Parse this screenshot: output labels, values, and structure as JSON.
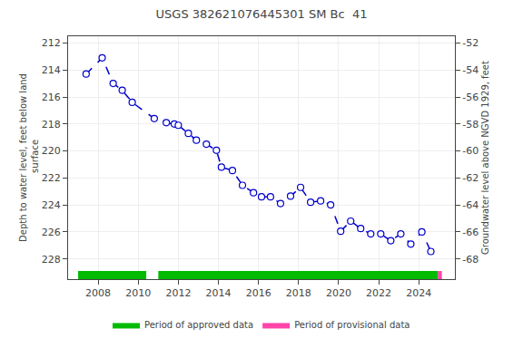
{
  "chart_data": {
    "type": "line",
    "title": "USGS 382621076445301 SM Bc  41",
    "ylabel": "Depth to water level, feet below land\n surface",
    "y2label": "Groundwater level above NGVD 1929, feet",
    "x": [
      2007.4,
      2008.2,
      2008.75,
      2009.2,
      2009.7,
      2010.8,
      2011.4,
      2011.8,
      2012.0,
      2012.5,
      2012.9,
      2013.4,
      2013.9,
      2014.15,
      2014.7,
      2015.2,
      2015.75,
      2016.15,
      2016.6,
      2017.1,
      2017.6,
      2018.1,
      2018.6,
      2019.1,
      2019.6,
      2020.1,
      2020.6,
      2021.1,
      2021.6,
      2022.1,
      2022.6,
      2023.1,
      2023.6,
      2024.15,
      2024.6
    ],
    "values": [
      214.3,
      213.1,
      215.0,
      215.5,
      216.4,
      217.6,
      217.9,
      218.0,
      218.1,
      218.7,
      219.2,
      219.5,
      219.95,
      221.2,
      221.45,
      222.55,
      223.1,
      223.4,
      223.4,
      223.9,
      223.35,
      222.7,
      223.8,
      223.7,
      224.0,
      225.95,
      225.2,
      225.75,
      226.15,
      226.15,
      226.65,
      226.15,
      226.9,
      226.0,
      227.45
    ],
    "color": "#0000cc",
    "line_style": "dashed",
    "marker": "circle",
    "xlim": [
      2006.5,
      2025.8
    ],
    "xticks": [
      2008,
      2010,
      2012,
      2014,
      2016,
      2018,
      2020,
      2022,
      2024
    ],
    "ylim": [
      229.5,
      211.5
    ],
    "yticks": [
      212,
      214,
      216,
      218,
      220,
      222,
      224,
      226,
      228
    ],
    "y2lim": [
      -69.5,
      -51.5
    ],
    "y2ticks": [
      -52,
      -54,
      -56,
      -58,
      -60,
      -62,
      -64,
      -66,
      -68
    ],
    "grid": true,
    "legend": "bottom",
    "period_bar_y": [
      228.9,
      229.5
    ],
    "period_bars": [
      {
        "name": "Period of approved data",
        "color": "#00bb00",
        "periods": [
          [
            2007.0,
            2010.4
          ],
          [
            2011.0,
            2024.95
          ]
        ]
      },
      {
        "name": "Period of provisional data",
        "color": "#ff44aa",
        "periods": [
          [
            2024.95,
            2025.15
          ]
        ]
      }
    ]
  }
}
